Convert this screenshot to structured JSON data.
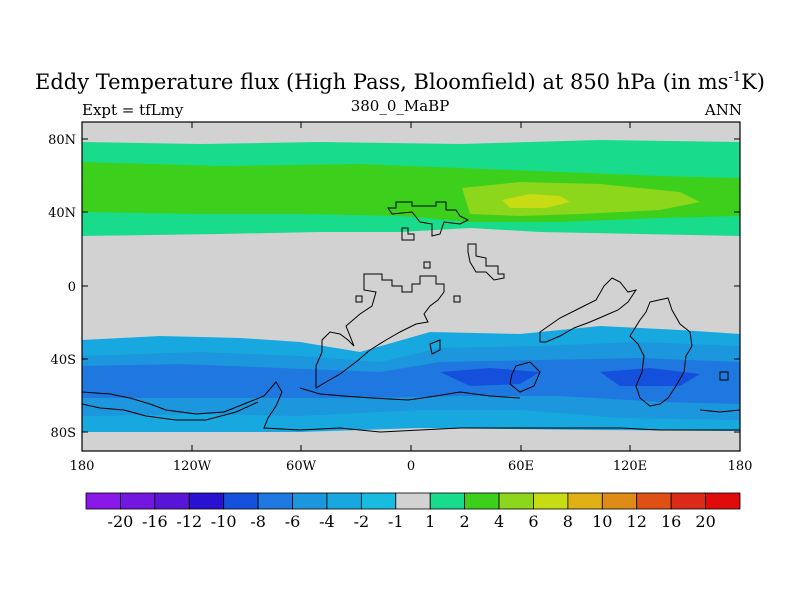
{
  "title": {
    "main": "Eddy Temperature flux (High Pass, Bloomfield) at 850 hPa (in ms",
    "superscript": "-1",
    "suffix": "K)"
  },
  "left_string": "Expt = tfLmy",
  "center_string": "380_0_MaBP",
  "right_string": "ANN",
  "axes": {
    "lat_labels": [
      "80N",
      "40N",
      "0",
      "40S",
      "80S"
    ],
    "lon_labels": [
      "180",
      "120W",
      "60W",
      "0",
      "60E",
      "120E",
      "180"
    ]
  },
  "colorbar": {
    "labels": [
      "-20",
      "-16",
      "-12",
      "-10",
      "-8",
      "-6",
      "-4",
      "-2",
      "-1",
      "1",
      "2",
      "4",
      "6",
      "8",
      "10",
      "12",
      "16",
      "20"
    ],
    "colors": [
      "#8a18e8",
      "#7216e0",
      "#5a14d8",
      "#2a10d0",
      "#1450dc",
      "#1e78e0",
      "#1c96dc",
      "#18a8e0",
      "#18bcde",
      "#d2d2d2",
      "#18dc8c",
      "#3cd01c",
      "#8cd61c",
      "#c8dc14",
      "#e0b014",
      "#dc8c14",
      "#e05014",
      "#dc2a18",
      "#e00c0c"
    ]
  },
  "map_colors": {
    "land_bg": "#d2d2d2",
    "pos_band": "#18dc8c",
    "pos_core": "#3cd01c",
    "pos_peak": "#8cd61c",
    "pos_max": "#c8dc14",
    "neg_outer": "#18a8e0",
    "neg_mid": "#1c96dc",
    "neg_core": "#1e78e0",
    "neg_peak": "#1450dc",
    "coast": "#000000"
  }
}
